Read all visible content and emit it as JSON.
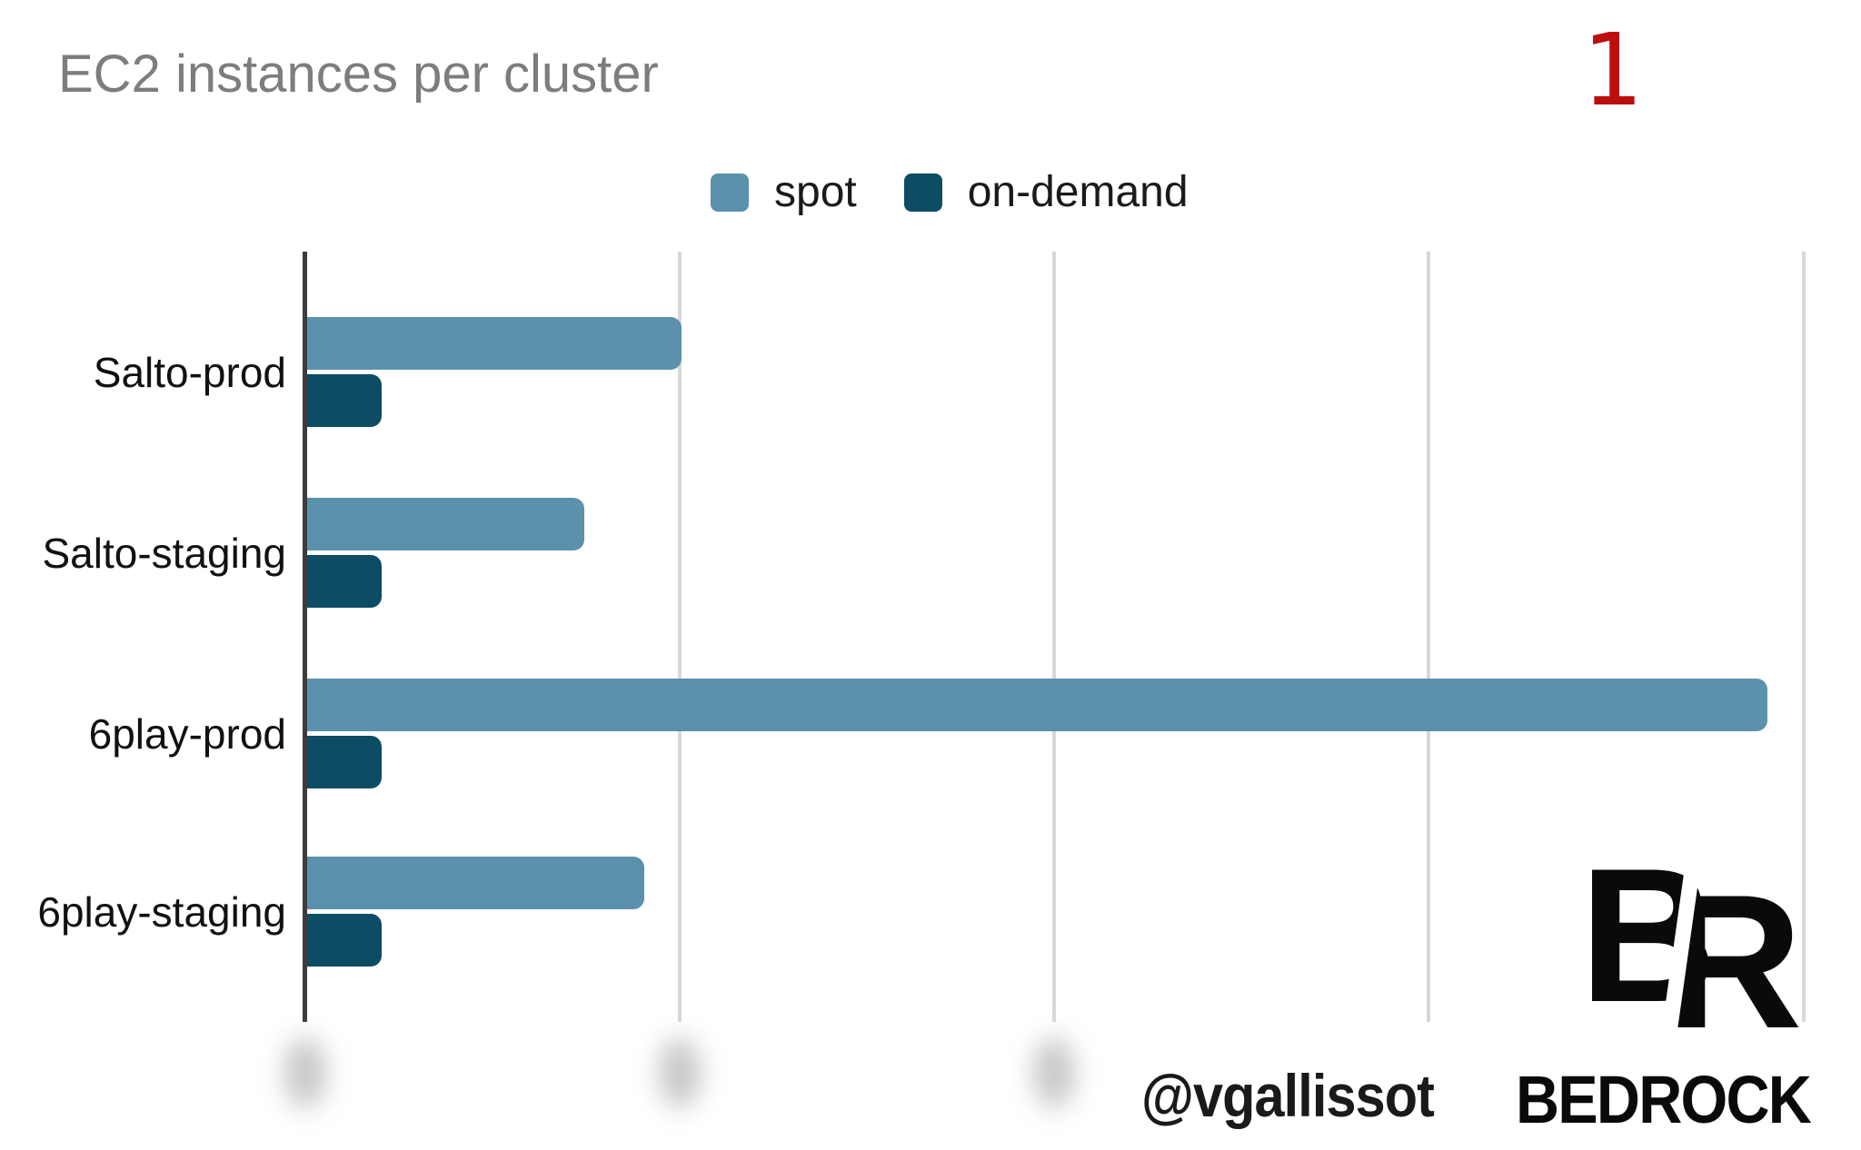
{
  "slide": {
    "title": "EC2 instances per cluster",
    "page_number": "1",
    "footer_handle": "@vgallissot",
    "brand_wordmark": "BEDROCK",
    "logo": {
      "letter_b": "B",
      "letter_r": "R"
    }
  },
  "colors": {
    "spot": "#5b91ad",
    "on_demand": "#0d4c65",
    "title_gray": "#7d7d7d",
    "page_number_red": "#bd0e0e",
    "axis": "#3c3c3c",
    "gridline": "#d8d8d8"
  },
  "legend": {
    "items": [
      {
        "label": "spot",
        "color": "#5b91ad"
      },
      {
        "label": "on-demand",
        "color": "#0d4c65"
      }
    ]
  },
  "chart_data": {
    "type": "bar",
    "orientation": "horizontal",
    "title": "EC2 instances per cluster",
    "categories": [
      "Salto-prod",
      "Salto-staging",
      "6play-prod",
      "6play-staging"
    ],
    "series": [
      {
        "name": "spot",
        "color": "#5b91ad",
        "values": [
          50,
          37,
          195,
          45
        ]
      },
      {
        "name": "on-demand",
        "color": "#0d4c65",
        "values": [
          10,
          10,
          10,
          10
        ]
      }
    ],
    "x_axis": {
      "gridlines_shown": 4,
      "assumed_gridline_interval": 50,
      "xlim": [
        0,
        205
      ],
      "tick_labels": "blurred-illegible in source (3 blurred smudges under axis and first two gridlines)"
    },
    "y_axis": {
      "label": ""
    },
    "legend_position": "top-center",
    "grid": "vertical-only",
    "note": "x tick labels are blurred in the screenshot; series values estimated from gridline spacing"
  }
}
